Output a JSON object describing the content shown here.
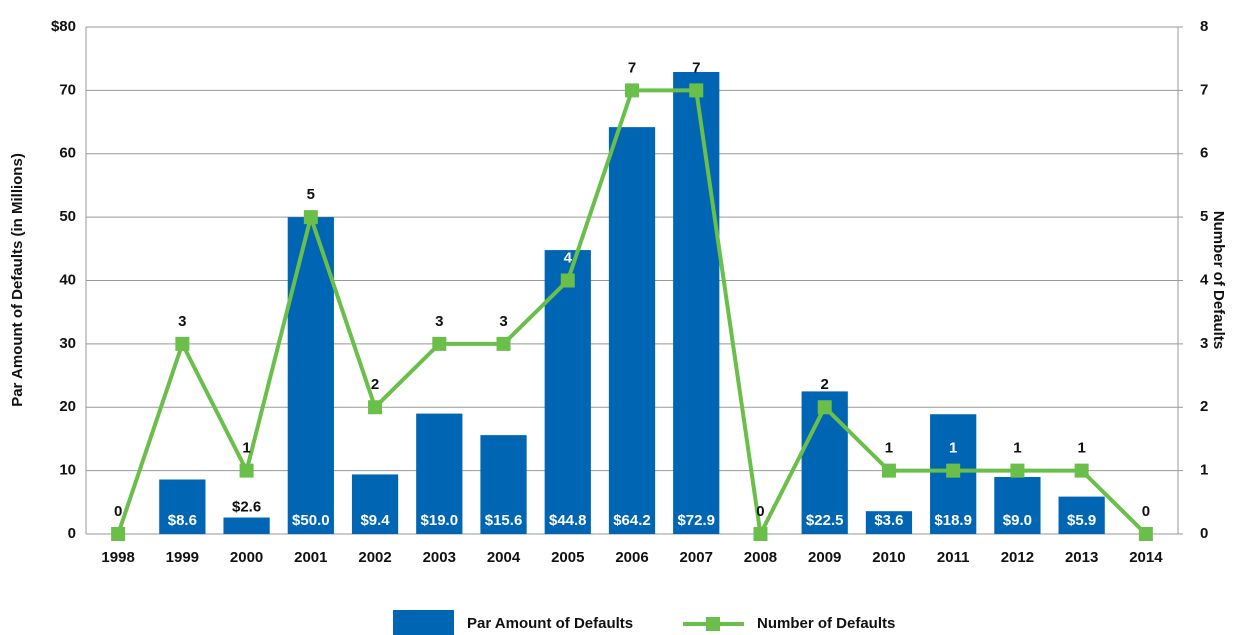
{
  "chart_data": {
    "type": "bar-line",
    "categories": [
      "1998",
      "1999",
      "2000",
      "2001",
      "2002",
      "2003",
      "2004",
      "2005",
      "2006",
      "2007",
      "2008",
      "2009",
      "2010",
      "2011",
      "2012",
      "2013",
      "2014"
    ],
    "series": [
      {
        "name": "Par Amount of Defaults",
        "type": "bar",
        "color": "#0066b3",
        "values": [
          0,
          8.6,
          2.6,
          50.0,
          9.4,
          19.0,
          15.6,
          44.8,
          64.2,
          72.9,
          0,
          22.5,
          3.6,
          18.9,
          9.0,
          5.9,
          0
        ],
        "value_labels": [
          null,
          "$8.6",
          "$2.6",
          "$50.0",
          "$9.4",
          "$19.0",
          "$15.6",
          "$44.8",
          "$64.2",
          "$72.9",
          null,
          "$22.5",
          "$3.6",
          "$18.9",
          "$9.0",
          "$5.9",
          null
        ]
      },
      {
        "name": "Number of Defaults",
        "type": "line",
        "color": "#6abf4b",
        "axis": "y2",
        "values": [
          0,
          3,
          1,
          5,
          2,
          3,
          3,
          4,
          7,
          7,
          0,
          2,
          1,
          1,
          1,
          1,
          0
        ]
      }
    ],
    "y_label": "Par Amount of Defaults (in Millions)",
    "y2_label": "Number of Defaults",
    "ylim": [
      0,
      80
    ],
    "yticks": [
      0,
      10,
      20,
      30,
      40,
      50,
      60,
      70,
      {
        "value": 80,
        "label": "$80"
      }
    ],
    "y2lim": [
      0,
      8
    ],
    "y2ticks": [
      0,
      1,
      2,
      3,
      4,
      5,
      6,
      7,
      8
    ],
    "grid": true
  }
}
